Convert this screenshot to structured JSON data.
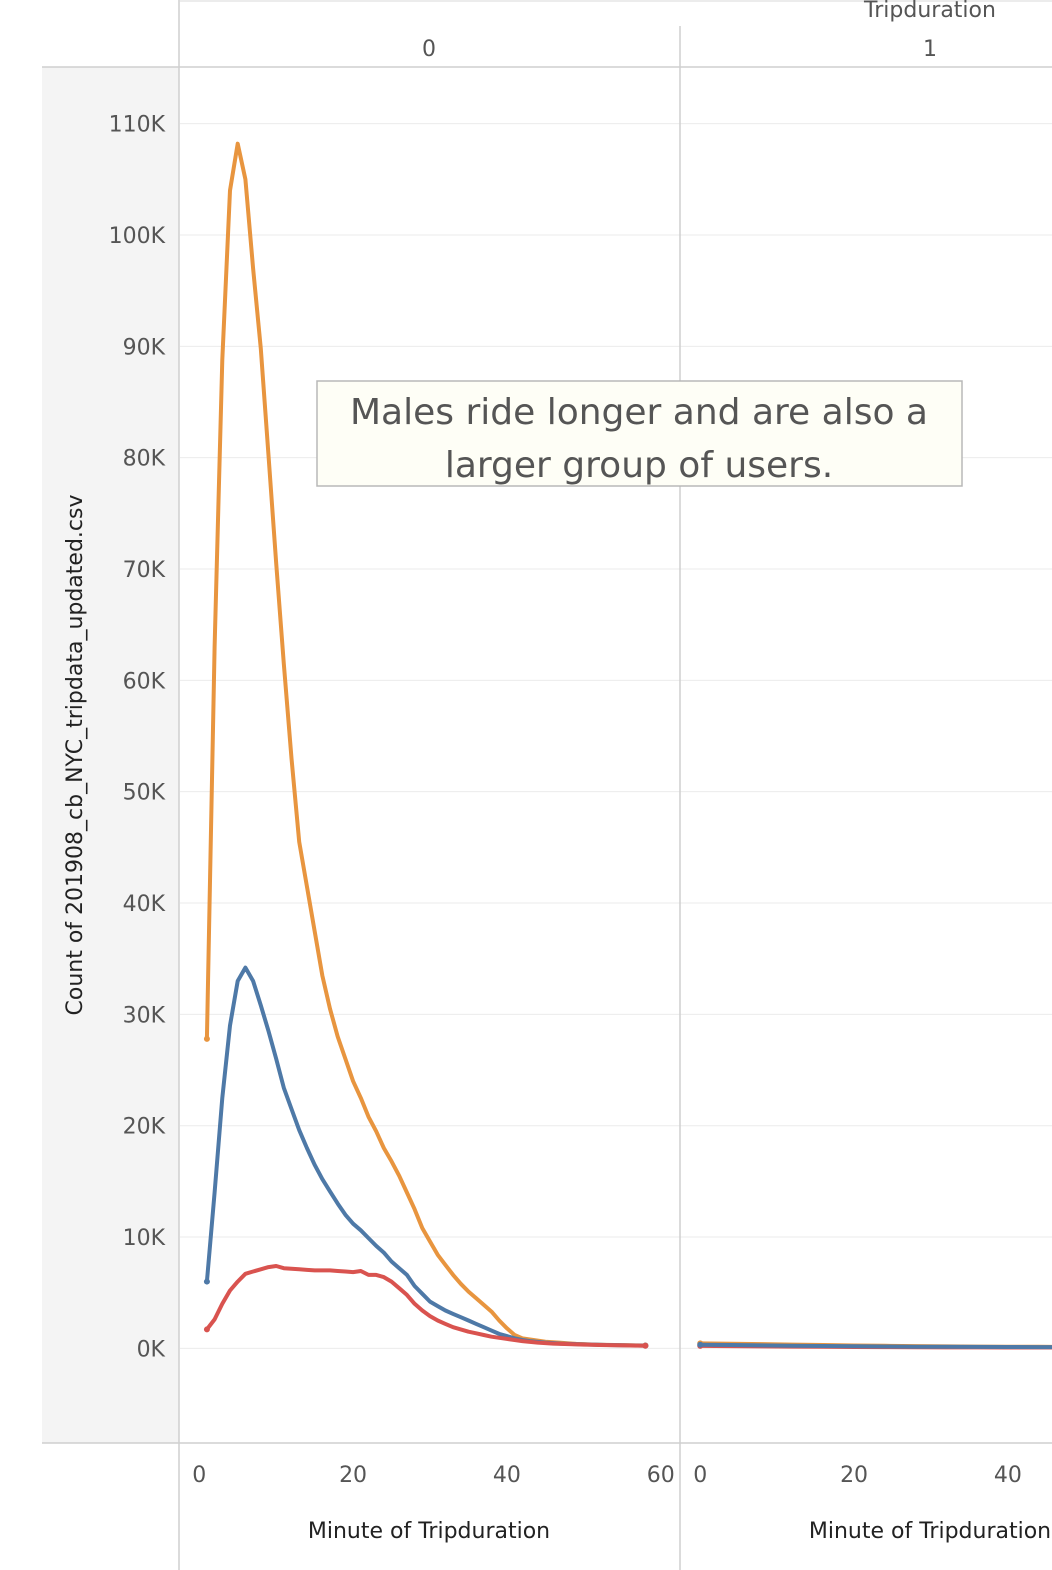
{
  "header": {
    "field_label": "Tripduration",
    "panels": [
      "0",
      "1"
    ]
  },
  "annotation": {
    "line1": "Males ride longer and are also a",
    "line2": "larger group of users."
  },
  "colors": {
    "orange": "#E8953F",
    "blue": "#4E79A7",
    "red": "#D9534F",
    "grid": "#EBEBEB",
    "axis_panel_bg": "#F4F4F4",
    "annotation_bg": "#FEFEF6"
  },
  "chart_data": {
    "type": "line",
    "xlabel": "Minute of Tripduration",
    "ylabel": "Count of 201908_cb_NYC_tripdata_updated.csv",
    "ylim": [
      -8500,
      115000
    ],
    "y_ticks": [
      0,
      10000,
      20000,
      30000,
      40000,
      50000,
      60000,
      70000,
      80000,
      90000,
      100000,
      110000
    ],
    "y_tick_labels": [
      "0K",
      "10K",
      "20K",
      "30K",
      "40K",
      "50K",
      "60K",
      "70K",
      "80K",
      "90K",
      "100K",
      "110K"
    ],
    "grid": true,
    "panels": [
      {
        "tripduration": "0",
        "xlim": [
          -2.5,
          62.5
        ],
        "x_ticks": [
          0,
          20,
          40,
          60
        ],
        "x_tick_labels": [
          "0",
          "20",
          "40",
          "60"
        ],
        "series": [
          {
            "color": "orange",
            "x": [
              1,
              2,
              3,
              4,
              5,
              6,
              7,
              8,
              9,
              10,
              11,
              12,
              13,
              14,
              15,
              16,
              17,
              18,
              19,
              20,
              21,
              22,
              23,
              24,
              25,
              26,
              27,
              28,
              29,
              30,
              31,
              32,
              33,
              34,
              35,
              36,
              37,
              38,
              39,
              40,
              41,
              42,
              43,
              44,
              45,
              46,
              47,
              48,
              49,
              50,
              51,
              52,
              53,
              54,
              55,
              56,
              57,
              58
            ],
            "y": [
              27800,
              63000,
              88800,
              104000,
              108200,
              105000,
              97000,
              89800,
              80200,
              70500,
              61500,
              53000,
              45500,
              41500,
              37500,
              33500,
              30500,
              28000,
              26000,
              24000,
              22500,
              20800,
              19500,
              18000,
              16800,
              15500,
              14000,
              12500,
              10800,
              9600,
              8400,
              7500,
              6600,
              5800,
              5100,
              4500,
              3900,
              3300,
              2500,
              1800,
              1200,
              900,
              800,
              700,
              600,
              550,
              500,
              450,
              400,
              380,
              350,
              330,
              310,
              300,
              290,
              280,
              270,
              260
            ]
          },
          {
            "color": "blue",
            "x": [
              1,
              2,
              3,
              4,
              5,
              6,
              7,
              8,
              9,
              10,
              11,
              12,
              13,
              14,
              15,
              16,
              17,
              18,
              19,
              20,
              21,
              22,
              23,
              24,
              25,
              26,
              27,
              28,
              29,
              30,
              31,
              32,
              33,
              34,
              35,
              36,
              37,
              38,
              39,
              40,
              41,
              42,
              43,
              44,
              45,
              46,
              47,
              48,
              49,
              50,
              51,
              52,
              53,
              54,
              55,
              56,
              57,
              58
            ],
            "y": [
              6000,
              14000,
              22500,
              29000,
              33000,
              34200,
              33000,
              30800,
              28500,
              26000,
              23400,
              21500,
              19600,
              18000,
              16500,
              15200,
              14100,
              13000,
              12000,
              11200,
              10600,
              9900,
              9200,
              8600,
              7800,
              7200,
              6600,
              5600,
              4900,
              4200,
              3800,
              3400,
              3100,
              2800,
              2500,
              2200,
              1900,
              1600,
              1300,
              1100,
              900,
              750,
              650,
              580,
              520,
              470,
              430,
              400,
              380,
              360,
              340,
              320,
              300,
              290,
              280,
              270,
              260,
              250
            ]
          },
          {
            "color": "red",
            "x": [
              1,
              2,
              3,
              4,
              5,
              6,
              7,
              8,
              9,
              10,
              11,
              12,
              13,
              14,
              15,
              16,
              17,
              18,
              19,
              20,
              21,
              22,
              23,
              24,
              25,
              26,
              27,
              28,
              29,
              30,
              31,
              32,
              33,
              34,
              35,
              36,
              37,
              38,
              39,
              40,
              41,
              42,
              43,
              44,
              45,
              46,
              47,
              48,
              49,
              50,
              51,
              52,
              53,
              54,
              55,
              56,
              57,
              58
            ],
            "y": [
              1700,
              2600,
              4000,
              5200,
              6000,
              6700,
              6900,
              7100,
              7300,
              7400,
              7200,
              7150,
              7100,
              7050,
              7000,
              7000,
              7000,
              6950,
              6900,
              6850,
              6950,
              6600,
              6600,
              6400,
              6000,
              5400,
              4800,
              4000,
              3400,
              2900,
              2500,
              2200,
              1900,
              1700,
              1500,
              1350,
              1200,
              1050,
              950,
              850,
              750,
              650,
              580,
              520,
              470,
              430,
              400,
              380,
              360,
              340,
              320,
              300,
              290,
              280,
              270,
              260,
              250,
              240
            ]
          }
        ]
      },
      {
        "tripduration": "1",
        "xlim": [
          -2.5,
          62.5
        ],
        "x_ticks": [
          0,
          20,
          40
        ],
        "x_tick_labels": [
          "0",
          "20",
          "40"
        ],
        "series": [
          {
            "color": "orange",
            "x": [
              0,
              4,
              8,
              12,
              16,
              20,
              24,
              28,
              32,
              36,
              40,
              44,
              48
            ],
            "y": [
              450,
              420,
              380,
              340,
              300,
              260,
              230,
              200,
              180,
              160,
              150,
              140,
              130
            ]
          },
          {
            "color": "red",
            "x": [
              0,
              4,
              8,
              12,
              16,
              20,
              24,
              28,
              32,
              36,
              40,
              44,
              48
            ],
            "y": [
              220,
              200,
              180,
              160,
              140,
              120,
              110,
              100,
              90,
              85,
              80,
              75,
              70
            ]
          },
          {
            "color": "blue",
            "x": [
              0,
              4,
              8,
              12,
              16,
              20,
              24,
              28,
              32,
              36,
              40,
              44,
              48
            ],
            "y": [
              330,
              300,
              270,
              240,
              210,
              190,
              170,
              150,
              140,
              130,
              120,
              110,
              100
            ]
          }
        ]
      }
    ]
  }
}
